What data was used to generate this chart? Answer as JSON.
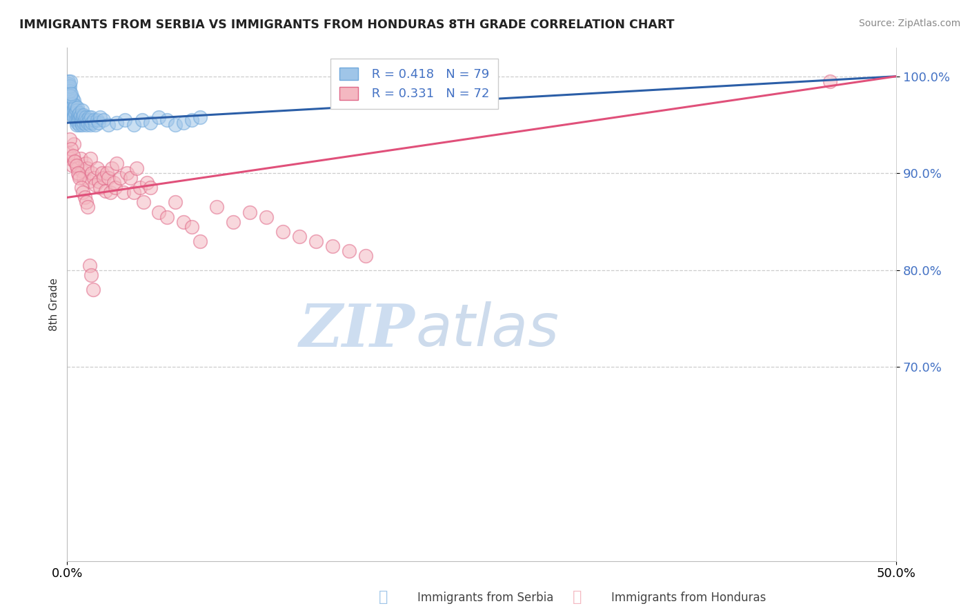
{
  "title": "IMMIGRANTS FROM SERBIA VS IMMIGRANTS FROM HONDURAS 8TH GRADE CORRELATION CHART",
  "source": "Source: ZipAtlas.com",
  "ylabel": "8th Grade",
  "xlim": [
    0,
    50
  ],
  "ylim": [
    50,
    103
  ],
  "yticks_visible": [
    70,
    80,
    90,
    100
  ],
  "ytick_labels": [
    "70.0%",
    "80.0%",
    "90.0%",
    "100.0%"
  ],
  "xtick_labels_left": "0.0%",
  "xtick_labels_right": "50.0%",
  "R_serbia": 0.418,
  "N_serbia": 79,
  "R_honduras": 0.331,
  "N_honduras": 72,
  "serbia_color": "#9fc5e8",
  "serbia_edge_color": "#6fa8dc",
  "honduras_color": "#f4b8c1",
  "honduras_edge_color": "#e06888",
  "serbia_line_color": "#2b5ea7",
  "honduras_line_color": "#e0507a",
  "watermark_zip": "ZIP",
  "watermark_atlas": "atlas",
  "watermark_color": "#d0e4f5",
  "watermark_color2": "#b0c8e0",
  "serbia_x": [
    0.05,
    0.08,
    0.1,
    0.12,
    0.15,
    0.18,
    0.2,
    0.22,
    0.25,
    0.28,
    0.3,
    0.3,
    0.32,
    0.35,
    0.38,
    0.4,
    0.4,
    0.42,
    0.45,
    0.48,
    0.5,
    0.52,
    0.55,
    0.58,
    0.6,
    0.6,
    0.62,
    0.65,
    0.68,
    0.7,
    0.72,
    0.75,
    0.78,
    0.8,
    0.82,
    0.85,
    0.88,
    0.9,
    0.92,
    0.95,
    0.98,
    1.0,
    1.05,
    1.1,
    1.15,
    1.2,
    1.25,
    1.3,
    1.35,
    1.4,
    1.45,
    1.5,
    1.6,
    1.7,
    1.8,
    1.9,
    2.0,
    2.2,
    2.5,
    3.0,
    3.5,
    4.0,
    4.5,
    5.0,
    5.5,
    6.0,
    6.5,
    7.0,
    7.5,
    8.0,
    0.06,
    0.09,
    0.11,
    0.14,
    0.16,
    0.19,
    0.21,
    0.24,
    19.5
  ],
  "serbia_y": [
    98.5,
    99.0,
    97.8,
    98.2,
    96.5,
    97.5,
    98.0,
    97.0,
    96.8,
    97.2,
    96.0,
    97.8,
    96.5,
    97.1,
    96.3,
    97.5,
    96.0,
    95.8,
    96.8,
    97.0,
    96.2,
    95.5,
    96.5,
    95.0,
    96.8,
    95.5,
    95.2,
    96.0,
    95.8,
    95.5,
    96.2,
    95.0,
    95.8,
    95.5,
    96.0,
    95.2,
    95.5,
    95.0,
    96.5,
    95.8,
    95.2,
    96.0,
    95.5,
    95.8,
    95.0,
    95.5,
    95.2,
    95.8,
    95.5,
    95.0,
    95.8,
    95.2,
    95.5,
    95.0,
    95.5,
    95.2,
    95.8,
    95.5,
    95.0,
    95.2,
    95.5,
    95.0,
    95.5,
    95.2,
    95.8,
    95.5,
    95.0,
    95.2,
    95.5,
    95.8,
    99.5,
    98.8,
    99.2,
    98.5,
    99.0,
    98.0,
    99.5,
    98.2,
    100.0
  ],
  "honduras_x": [
    0.1,
    0.2,
    0.3,
    0.4,
    0.5,
    0.6,
    0.7,
    0.8,
    0.9,
    1.0,
    1.1,
    1.2,
    1.3,
    1.4,
    1.5,
    1.6,
    1.7,
    1.8,
    1.9,
    2.0,
    2.1,
    2.2,
    2.3,
    2.4,
    2.5,
    2.6,
    2.7,
    2.8,
    2.9,
    3.0,
    3.2,
    3.4,
    3.6,
    3.8,
    4.0,
    4.2,
    4.4,
    4.6,
    4.8,
    5.0,
    5.5,
    6.0,
    6.5,
    7.0,
    7.5,
    8.0,
    9.0,
    10.0,
    11.0,
    12.0,
    13.0,
    14.0,
    15.0,
    16.0,
    17.0,
    18.0,
    0.15,
    0.25,
    0.35,
    0.45,
    0.55,
    0.65,
    0.75,
    0.85,
    0.95,
    1.05,
    1.15,
    1.25,
    1.35,
    1.45,
    1.55,
    46.0
  ],
  "honduras_y": [
    92.0,
    91.5,
    90.8,
    93.0,
    91.2,
    90.5,
    89.8,
    91.5,
    90.2,
    89.5,
    91.0,
    90.5,
    89.2,
    91.5,
    90.0,
    89.5,
    88.8,
    90.5,
    89.2,
    88.5,
    90.0,
    89.5,
    88.2,
    90.0,
    89.5,
    88.0,
    90.5,
    89.0,
    88.5,
    91.0,
    89.5,
    88.0,
    90.0,
    89.5,
    88.0,
    90.5,
    88.5,
    87.0,
    89.0,
    88.5,
    86.0,
    85.5,
    87.0,
    85.0,
    84.5,
    83.0,
    86.5,
    85.0,
    86.0,
    85.5,
    84.0,
    83.5,
    83.0,
    82.5,
    82.0,
    81.5,
    93.5,
    92.5,
    91.8,
    91.2,
    90.8,
    90.0,
    89.5,
    88.5,
    88.0,
    87.5,
    87.0,
    86.5,
    80.5,
    79.5,
    78.0,
    99.5
  ],
  "serbia_trend_x": [
    0.0,
    50.0
  ],
  "serbia_trend_y": [
    95.2,
    100.0
  ],
  "honduras_trend_x": [
    0.0,
    50.0
  ],
  "honduras_trend_y": [
    87.5,
    100.0
  ]
}
